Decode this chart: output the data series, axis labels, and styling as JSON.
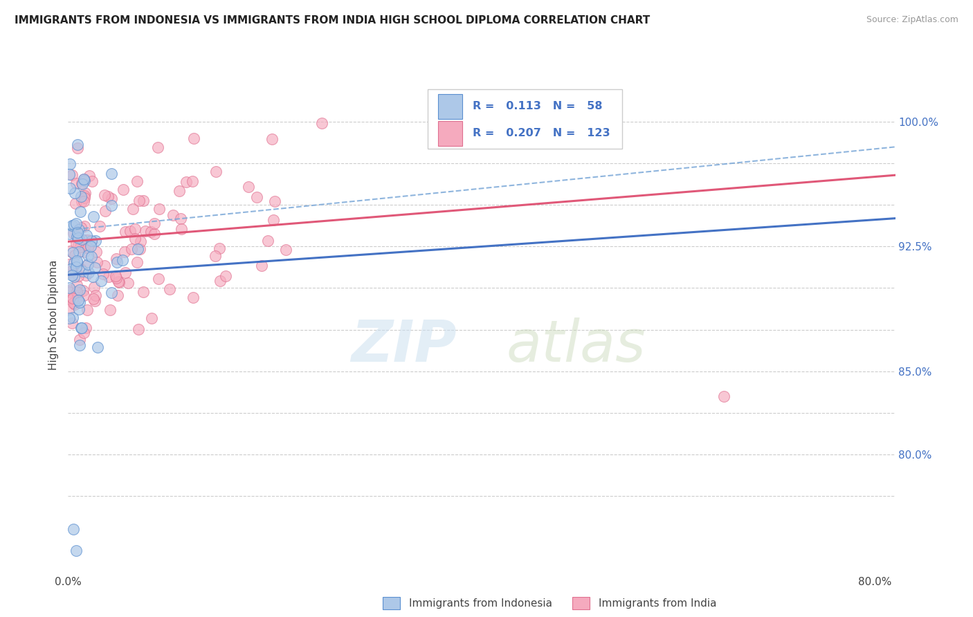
{
  "title": "IMMIGRANTS FROM INDONESIA VS IMMIGRANTS FROM INDIA HIGH SCHOOL DIPLOMA CORRELATION CHART",
  "source": "Source: ZipAtlas.com",
  "ylabel": "High School Diploma",
  "r_indonesia": 0.113,
  "n_indonesia": 58,
  "r_india": 0.207,
  "n_india": 123,
  "color_indonesia": "#adc8e8",
  "color_india": "#f5aabe",
  "edge_indonesia": "#5a8fd0",
  "edge_india": "#e07090",
  "trendline_indonesia": "#4472c4",
  "trendline_india": "#e05878",
  "dashed_color": "#7ba8d8",
  "legend_label_indonesia": "Immigrants from Indonesia",
  "legend_label_india": "Immigrants from India",
  "xlim": [
    0.0,
    0.82
  ],
  "ylim": [
    0.728,
    1.04
  ],
  "ytick_positions": [
    0.775,
    0.8,
    0.825,
    0.85,
    0.875,
    0.9,
    0.925,
    0.95,
    0.975,
    1.0
  ],
  "ytick_labels": [
    "",
    "80.0%",
    "",
    "85.0%",
    "",
    "",
    "92.5%",
    "",
    "",
    "100.0%"
  ],
  "title_fontsize": 11,
  "axis_fontsize": 11,
  "label_color": "#4472c4",
  "grid_color": "#cccccc"
}
